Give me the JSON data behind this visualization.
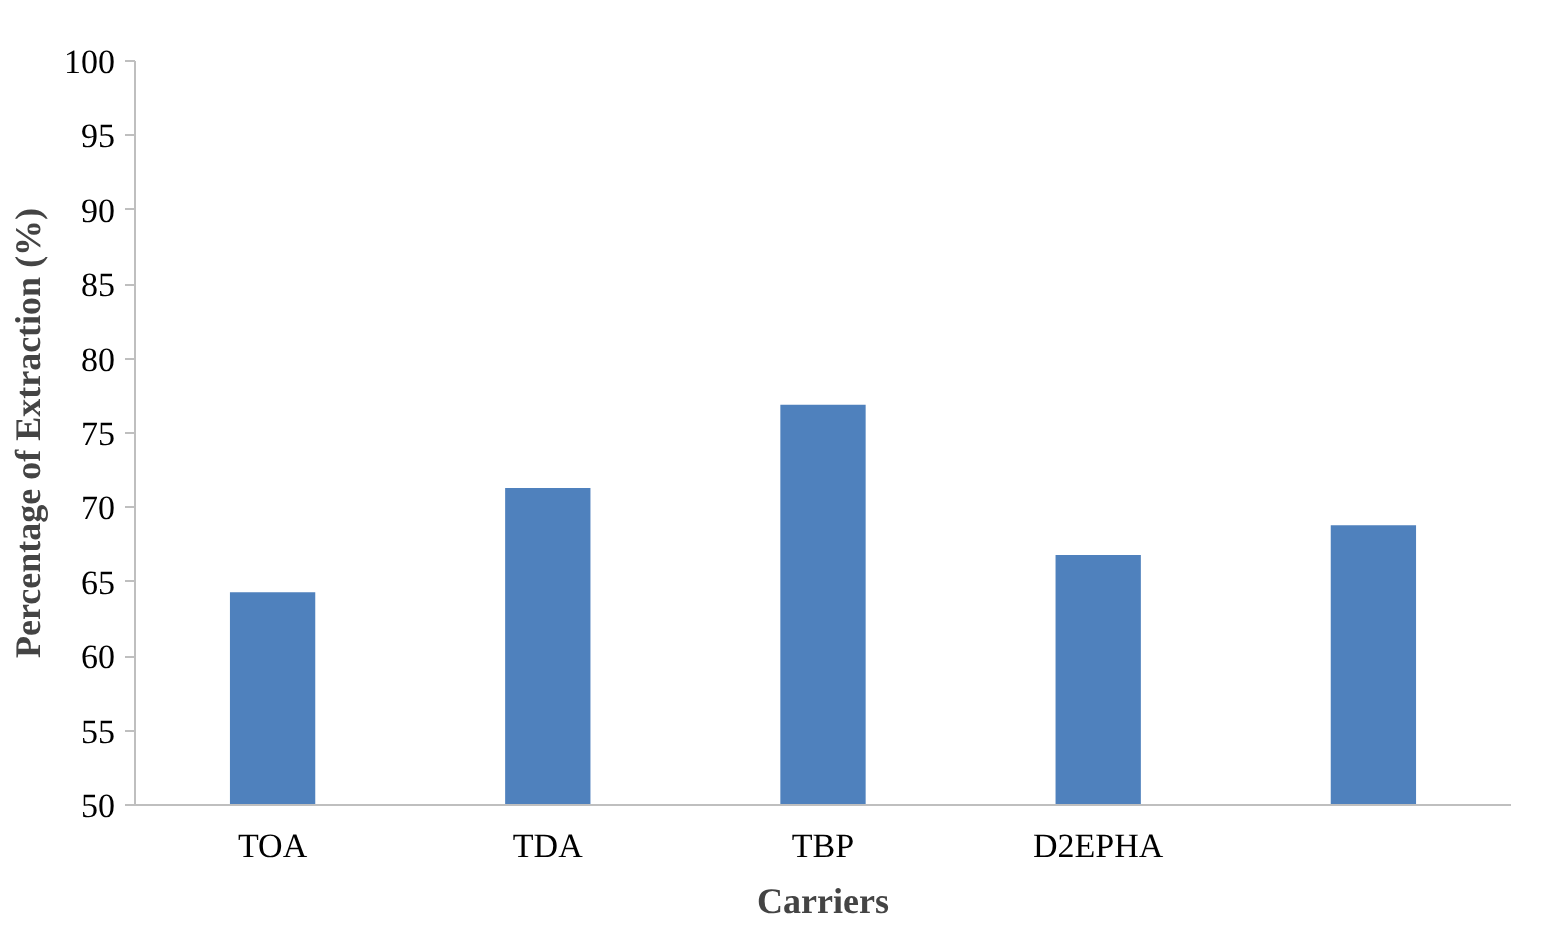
{
  "chart_data": {
    "type": "bar",
    "xlabel": "Carriers",
    "ylabel": "Percentage of Extraction (%)",
    "categories": [
      "TOA",
      "TDA",
      "TBP",
      "D2EPHA",
      null
    ],
    "values": [
      64.3,
      71.3,
      76.9,
      66.8,
      68.8
    ],
    "color": "#4f81bd",
    "ylim": [
      50,
      100
    ],
    "yticks": [
      50,
      55,
      60,
      65,
      70,
      75,
      80,
      85,
      90,
      95,
      100
    ],
    "grid": false
  }
}
